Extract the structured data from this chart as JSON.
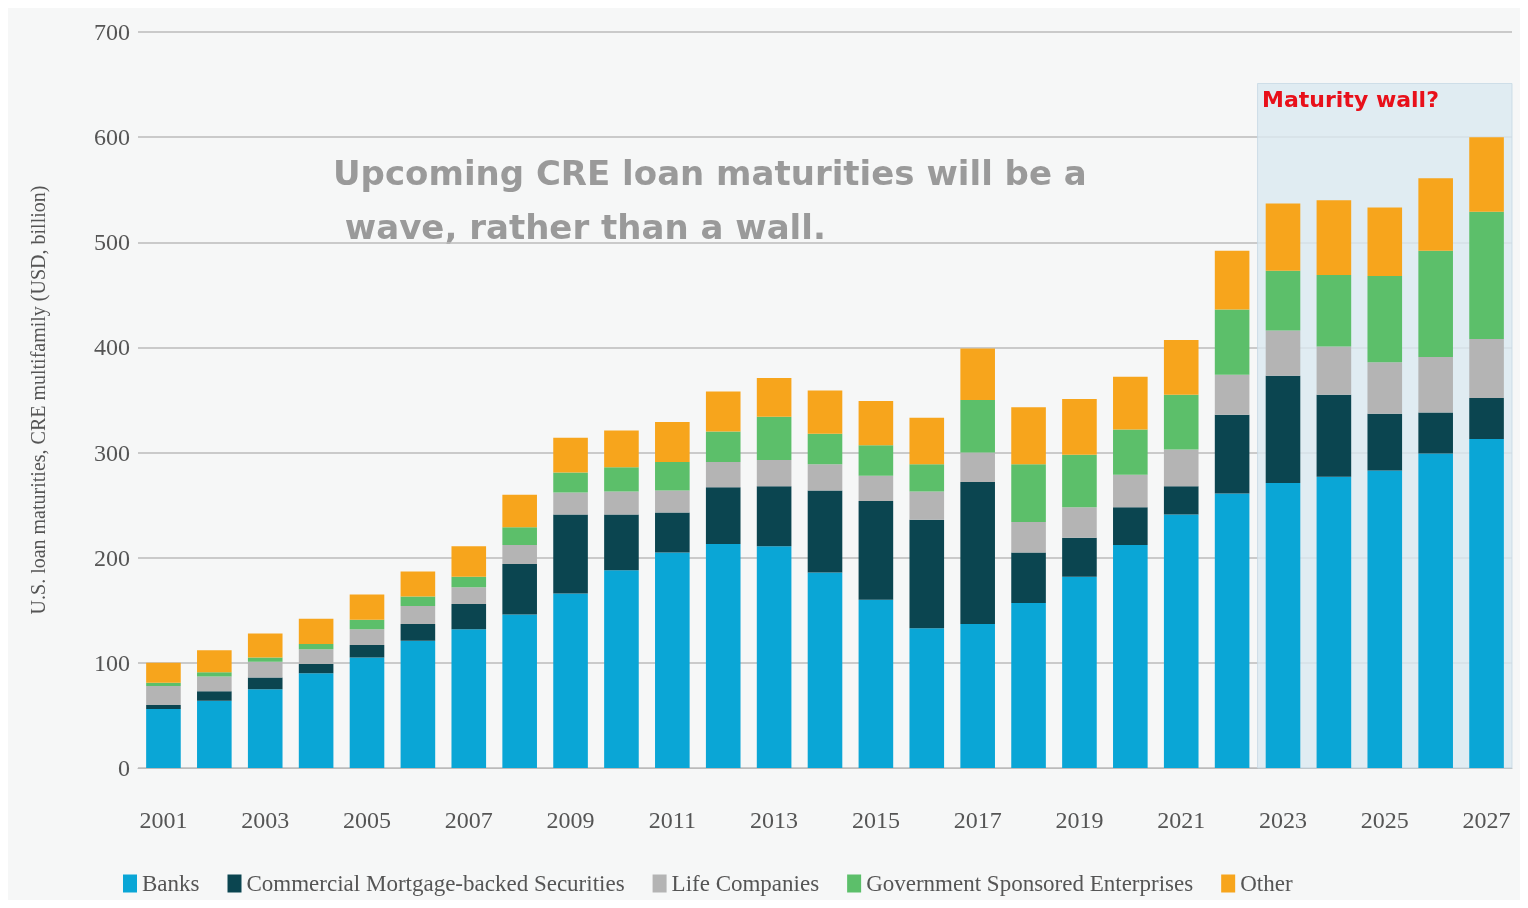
{
  "chart_data": {
    "type": "bar",
    "stacked": true,
    "ylabel": "U.S. loan maturities, CRE multifamily (USD, billion)",
    "categories": [
      "2001",
      null,
      "2003",
      null,
      "2005",
      null,
      "2007",
      null,
      "2009",
      null,
      "2011",
      null,
      "2013",
      null,
      "2015",
      null,
      "2017",
      null,
      "2019",
      null,
      "2021",
      null,
      "2023",
      null,
      "2025",
      null,
      "2027"
    ],
    "series": [
      {
        "name": "Banks",
        "color": "#0aa6d6",
        "values": [
          56,
          64,
          75,
          90,
          105,
          121,
          132,
          146,
          166,
          188,
          205,
          213,
          211,
          186,
          160,
          133,
          137,
          157,
          182,
          212,
          241,
          261,
          271,
          277,
          283,
          299,
          313
        ]
      },
      {
        "name": "Commercial Mortgage-backed Securities",
        "color": "#0b4550",
        "values": [
          4,
          9,
          11,
          9,
          12,
          16,
          24,
          48,
          75,
          53,
          38,
          54,
          57,
          78,
          94,
          103,
          135,
          48,
          37,
          36,
          27,
          75,
          102,
          78,
          54,
          39,
          39
        ]
      },
      {
        "name": "Life Companies",
        "color": "#b4b4b4",
        "values": [
          18,
          14,
          15,
          14,
          15,
          17,
          16,
          18,
          21,
          22,
          21,
          24,
          25,
          25,
          24,
          27,
          28,
          29,
          29,
          31,
          35,
          38,
          43,
          46,
          49,
          53,
          56
        ]
      },
      {
        "name": "Government Sponsored Enterprises",
        "color": "#5cbf6a",
        "values": [
          3,
          4,
          4,
          5,
          9,
          9,
          10,
          17,
          19,
          23,
          27,
          29,
          41,
          29,
          29,
          26,
          50,
          55,
          50,
          43,
          52,
          62,
          57,
          68,
          82,
          101,
          121
        ]
      },
      {
        "name": "Other",
        "color": "#f7a51c",
        "values": [
          19,
          21,
          23,
          24,
          24,
          24,
          29,
          31,
          33,
          35,
          38,
          38,
          37,
          41,
          42,
          44,
          49,
          54,
          53,
          50,
          52,
          56,
          64,
          71,
          65,
          69,
          71
        ]
      }
    ],
    "ylim": [
      0,
      700
    ],
    "yticks": [
      0,
      100,
      200,
      300,
      400,
      500,
      600,
      700
    ],
    "grid": "y",
    "legend": "bottom",
    "bands": [
      {
        "axis": "x",
        "from": "2023",
        "to": "2027",
        "label": "Maturity wall?",
        "color": "#dbe8f0"
      }
    ],
    "annotations": [
      "Upcoming CRE loan maturities will be a wave, rather than a wall."
    ]
  }
}
